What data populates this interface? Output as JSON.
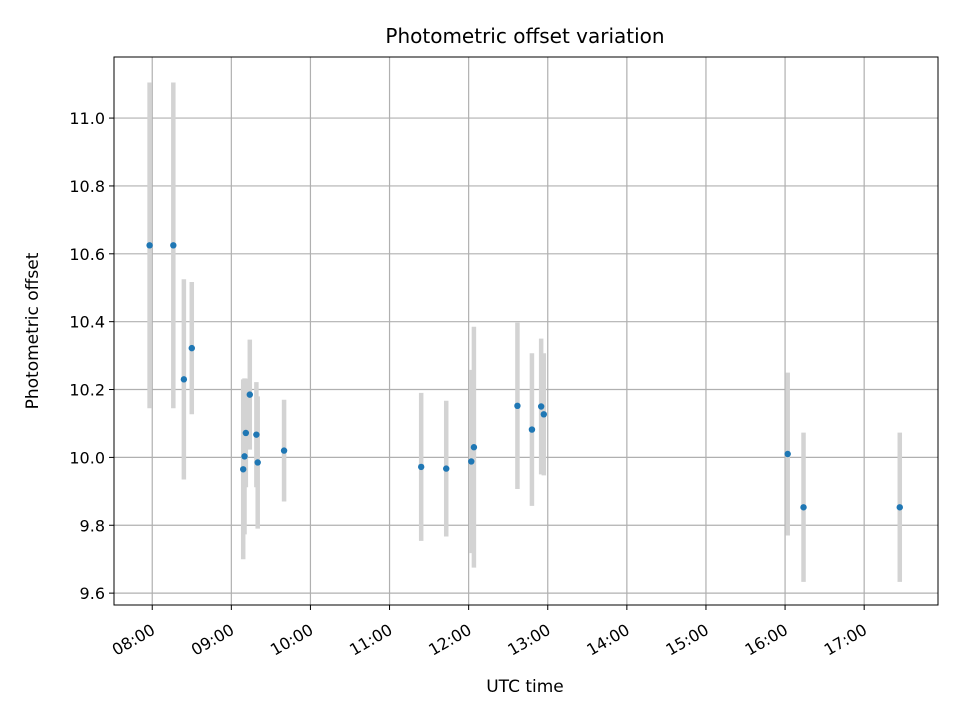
{
  "chart_data": {
    "type": "scatter",
    "title": "Photometric offset variation",
    "xlabel": "UTC time",
    "ylabel": "Photometric offset",
    "x_ticks": [
      "08:00",
      "09:00",
      "10:00",
      "11:00",
      "12:00",
      "13:00",
      "14:00",
      "15:00",
      "16:00",
      "17:00"
    ],
    "y_ticks": [
      "9.6",
      "9.8",
      "10.0",
      "10.2",
      "10.4",
      "10.6",
      "10.8",
      "11.0"
    ],
    "x_range": [
      "07:31",
      "17:56"
    ],
    "ylim": [
      9.565,
      11.18
    ],
    "grid": true,
    "colors": {
      "point": "#1f77b4",
      "errorbar": "#d3d3d3",
      "grid": "#b0b0b0"
    },
    "points": [
      {
        "time": "07:58",
        "y": 10.625,
        "yerr": 0.48
      },
      {
        "time": "08:16",
        "y": 10.625,
        "yerr": 0.48
      },
      {
        "time": "08:24",
        "y": 10.23,
        "yerr": 0.295
      },
      {
        "time": "08:30",
        "y": 10.322,
        "yerr": 0.195
      },
      {
        "time": "09:09",
        "y": 9.965,
        "yerr": 0.265
      },
      {
        "time": "09:10",
        "y": 10.003,
        "yerr": 0.23
      },
      {
        "time": "09:11",
        "y": 10.072,
        "yerr": 0.16
      },
      {
        "time": "09:14",
        "y": 10.185,
        "yerr": 0.162
      },
      {
        "time": "09:19",
        "y": 10.067,
        "yerr": 0.155
      },
      {
        "time": "09:20",
        "y": 9.985,
        "yerr": 0.195
      },
      {
        "time": "09:40",
        "y": 10.02,
        "yerr": 0.15
      },
      {
        "time": "11:24",
        "y": 9.972,
        "yerr": 0.218
      },
      {
        "time": "11:43",
        "y": 9.967,
        "yerr": 0.2
      },
      {
        "time": "12:02",
        "y": 9.988,
        "yerr": 0.27
      },
      {
        "time": "12:04",
        "y": 10.03,
        "yerr": 0.355
      },
      {
        "time": "12:37",
        "y": 10.152,
        "yerr": 0.245
      },
      {
        "time": "12:48",
        "y": 10.082,
        "yerr": 0.225
      },
      {
        "time": "12:55",
        "y": 10.15,
        "yerr": 0.2
      },
      {
        "time": "12:57",
        "y": 10.127,
        "yerr": 0.18
      },
      {
        "time": "16:02",
        "y": 10.01,
        "yerr": 0.24
      },
      {
        "time": "16:14",
        "y": 9.853,
        "yerr": 0.22
      },
      {
        "time": "17:27",
        "y": 9.853,
        "yerr": 0.22
      }
    ]
  }
}
